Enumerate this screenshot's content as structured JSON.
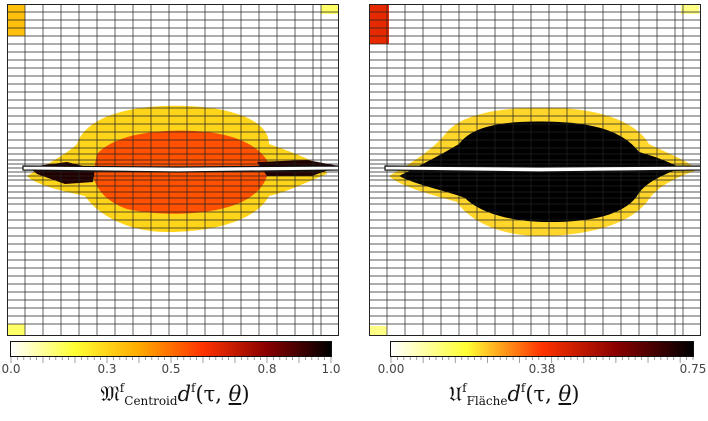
{
  "panels": [
    {
      "id": "left",
      "colorbar": {
        "ticks": [
          "0.0",
          "0.3",
          "0.5",
          "0.8",
          "1.0"
        ],
        "tick_positions": [
          0.0,
          0.3,
          0.5,
          0.8,
          1.0
        ],
        "colors": [
          "#ffffff",
          "#ffff33",
          "#ffaa00",
          "#ff3300",
          "#880000",
          "#000000"
        ]
      },
      "label": {
        "main": "𝔐",
        "sup": "f",
        "sub": "Centroid",
        "d": "d",
        "d_sup": "f",
        "args": "(τ, ",
        "theta": "θ",
        "close": ")"
      },
      "fills": [
        {
          "level": 0.35,
          "shape": "corner-tl"
        },
        {
          "level": 0.15,
          "shape": "corner-tr"
        },
        {
          "level": 0.15,
          "shape": "corner-bl"
        },
        {
          "level": 0.3,
          "shape": "upper-lobe"
        },
        {
          "level": 0.55,
          "shape": "core"
        },
        {
          "level": 0.95,
          "shape": "crack-tips"
        }
      ]
    },
    {
      "id": "right",
      "colorbar": {
        "ticks": [
          "0.00",
          "0.38",
          "0.75"
        ],
        "tick_positions": [
          0.0,
          0.5,
          1.0
        ],
        "colors": [
          "#ffffff",
          "#ffff33",
          "#ff3300",
          "#880000",
          "#000000"
        ]
      },
      "label": {
        "main": "𝔘",
        "sup": "f",
        "sub": "Fläche",
        "d": "d",
        "d_sup": "f",
        "args": "(τ, ",
        "theta": "θ",
        "close": ")"
      },
      "fills": [
        {
          "level": 0.55,
          "shape": "corner-tl"
        },
        {
          "level": 0.15,
          "shape": "corner-tr"
        },
        {
          "level": 0.15,
          "shape": "corner-bl"
        },
        {
          "level": 0.3,
          "shape": "upper-lobe"
        },
        {
          "level": 1.0,
          "shape": "core"
        }
      ]
    }
  ]
}
